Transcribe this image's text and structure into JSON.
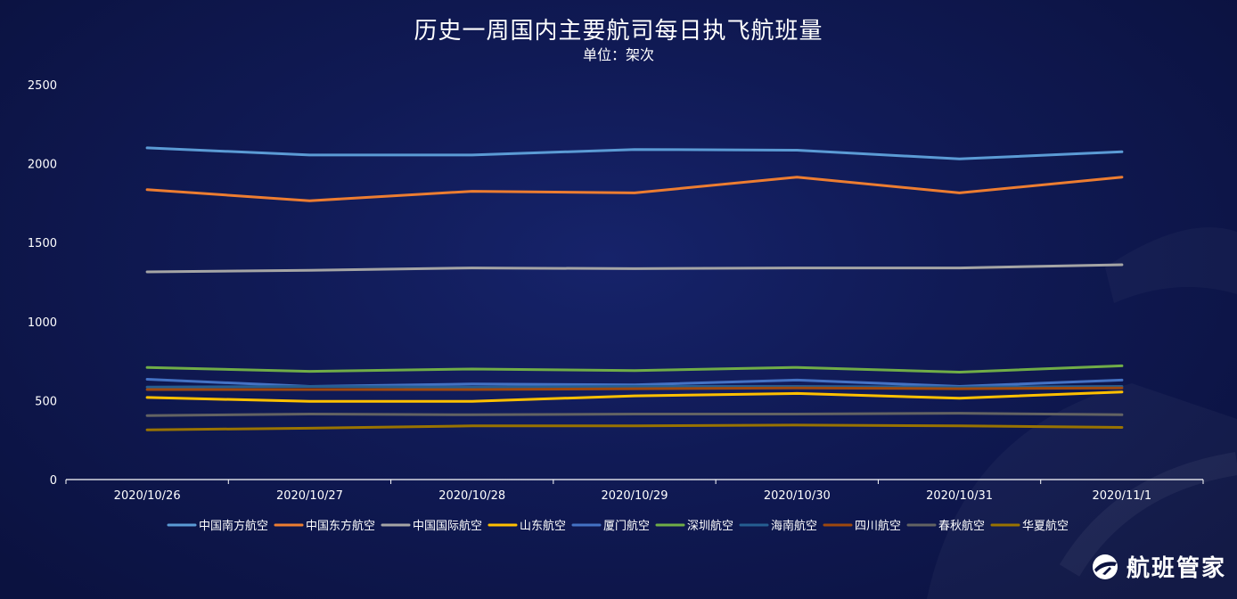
{
  "chart_data": {
    "type": "line",
    "title": "历史一周国内主要航司每日执飞航班量",
    "subtitle": "单位：架次",
    "xlabel": "",
    "ylabel": "",
    "ylim": [
      0,
      2500
    ],
    "yticks": [
      "0",
      "500",
      "1000",
      "1500",
      "2000",
      "2500"
    ],
    "categories": [
      "2020/10/26",
      "2020/10/27",
      "2020/10/28",
      "2020/10/29",
      "2020/10/30",
      "2020/10/31",
      "2020/11/1"
    ],
    "legend_position": "bottom-center",
    "series": [
      {
        "name": "中国南方航空",
        "color": "#5b9bd5",
        "values": [
          2100,
          2055,
          2055,
          2090,
          2085,
          2030,
          2075
        ]
      },
      {
        "name": "中国东方航空",
        "color": "#ed7d31",
        "values": [
          1835,
          1765,
          1825,
          1815,
          1915,
          1815,
          1915
        ]
      },
      {
        "name": "中国国际航空",
        "color": "#a5a5a5",
        "values": [
          1315,
          1325,
          1340,
          1335,
          1340,
          1340,
          1360
        ]
      },
      {
        "name": "山东航空",
        "color": "#ffc000",
        "values": [
          520,
          495,
          495,
          530,
          545,
          515,
          555
        ]
      },
      {
        "name": "厦门航空",
        "color": "#4472c4",
        "values": [
          635,
          590,
          605,
          600,
          630,
          590,
          630
        ]
      },
      {
        "name": "深圳航空",
        "color": "#70ad47",
        "values": [
          710,
          685,
          700,
          690,
          710,
          680,
          720
        ]
      },
      {
        "name": "海南航空",
        "color": "#255e91",
        "values": [
          585,
          590,
          585,
          590,
          590,
          585,
          590
        ]
      },
      {
        "name": "四川航空",
        "color": "#9e480e",
        "values": [
          570,
          570,
          570,
          575,
          580,
          575,
          580
        ]
      },
      {
        "name": "春秋航空",
        "color": "#636363",
        "values": [
          405,
          415,
          410,
          415,
          415,
          420,
          410
        ]
      },
      {
        "name": "华夏航空",
        "color": "#997300",
        "values": [
          315,
          325,
          340,
          340,
          345,
          340,
          330
        ]
      }
    ]
  },
  "brand": {
    "name": "航班管家"
  }
}
